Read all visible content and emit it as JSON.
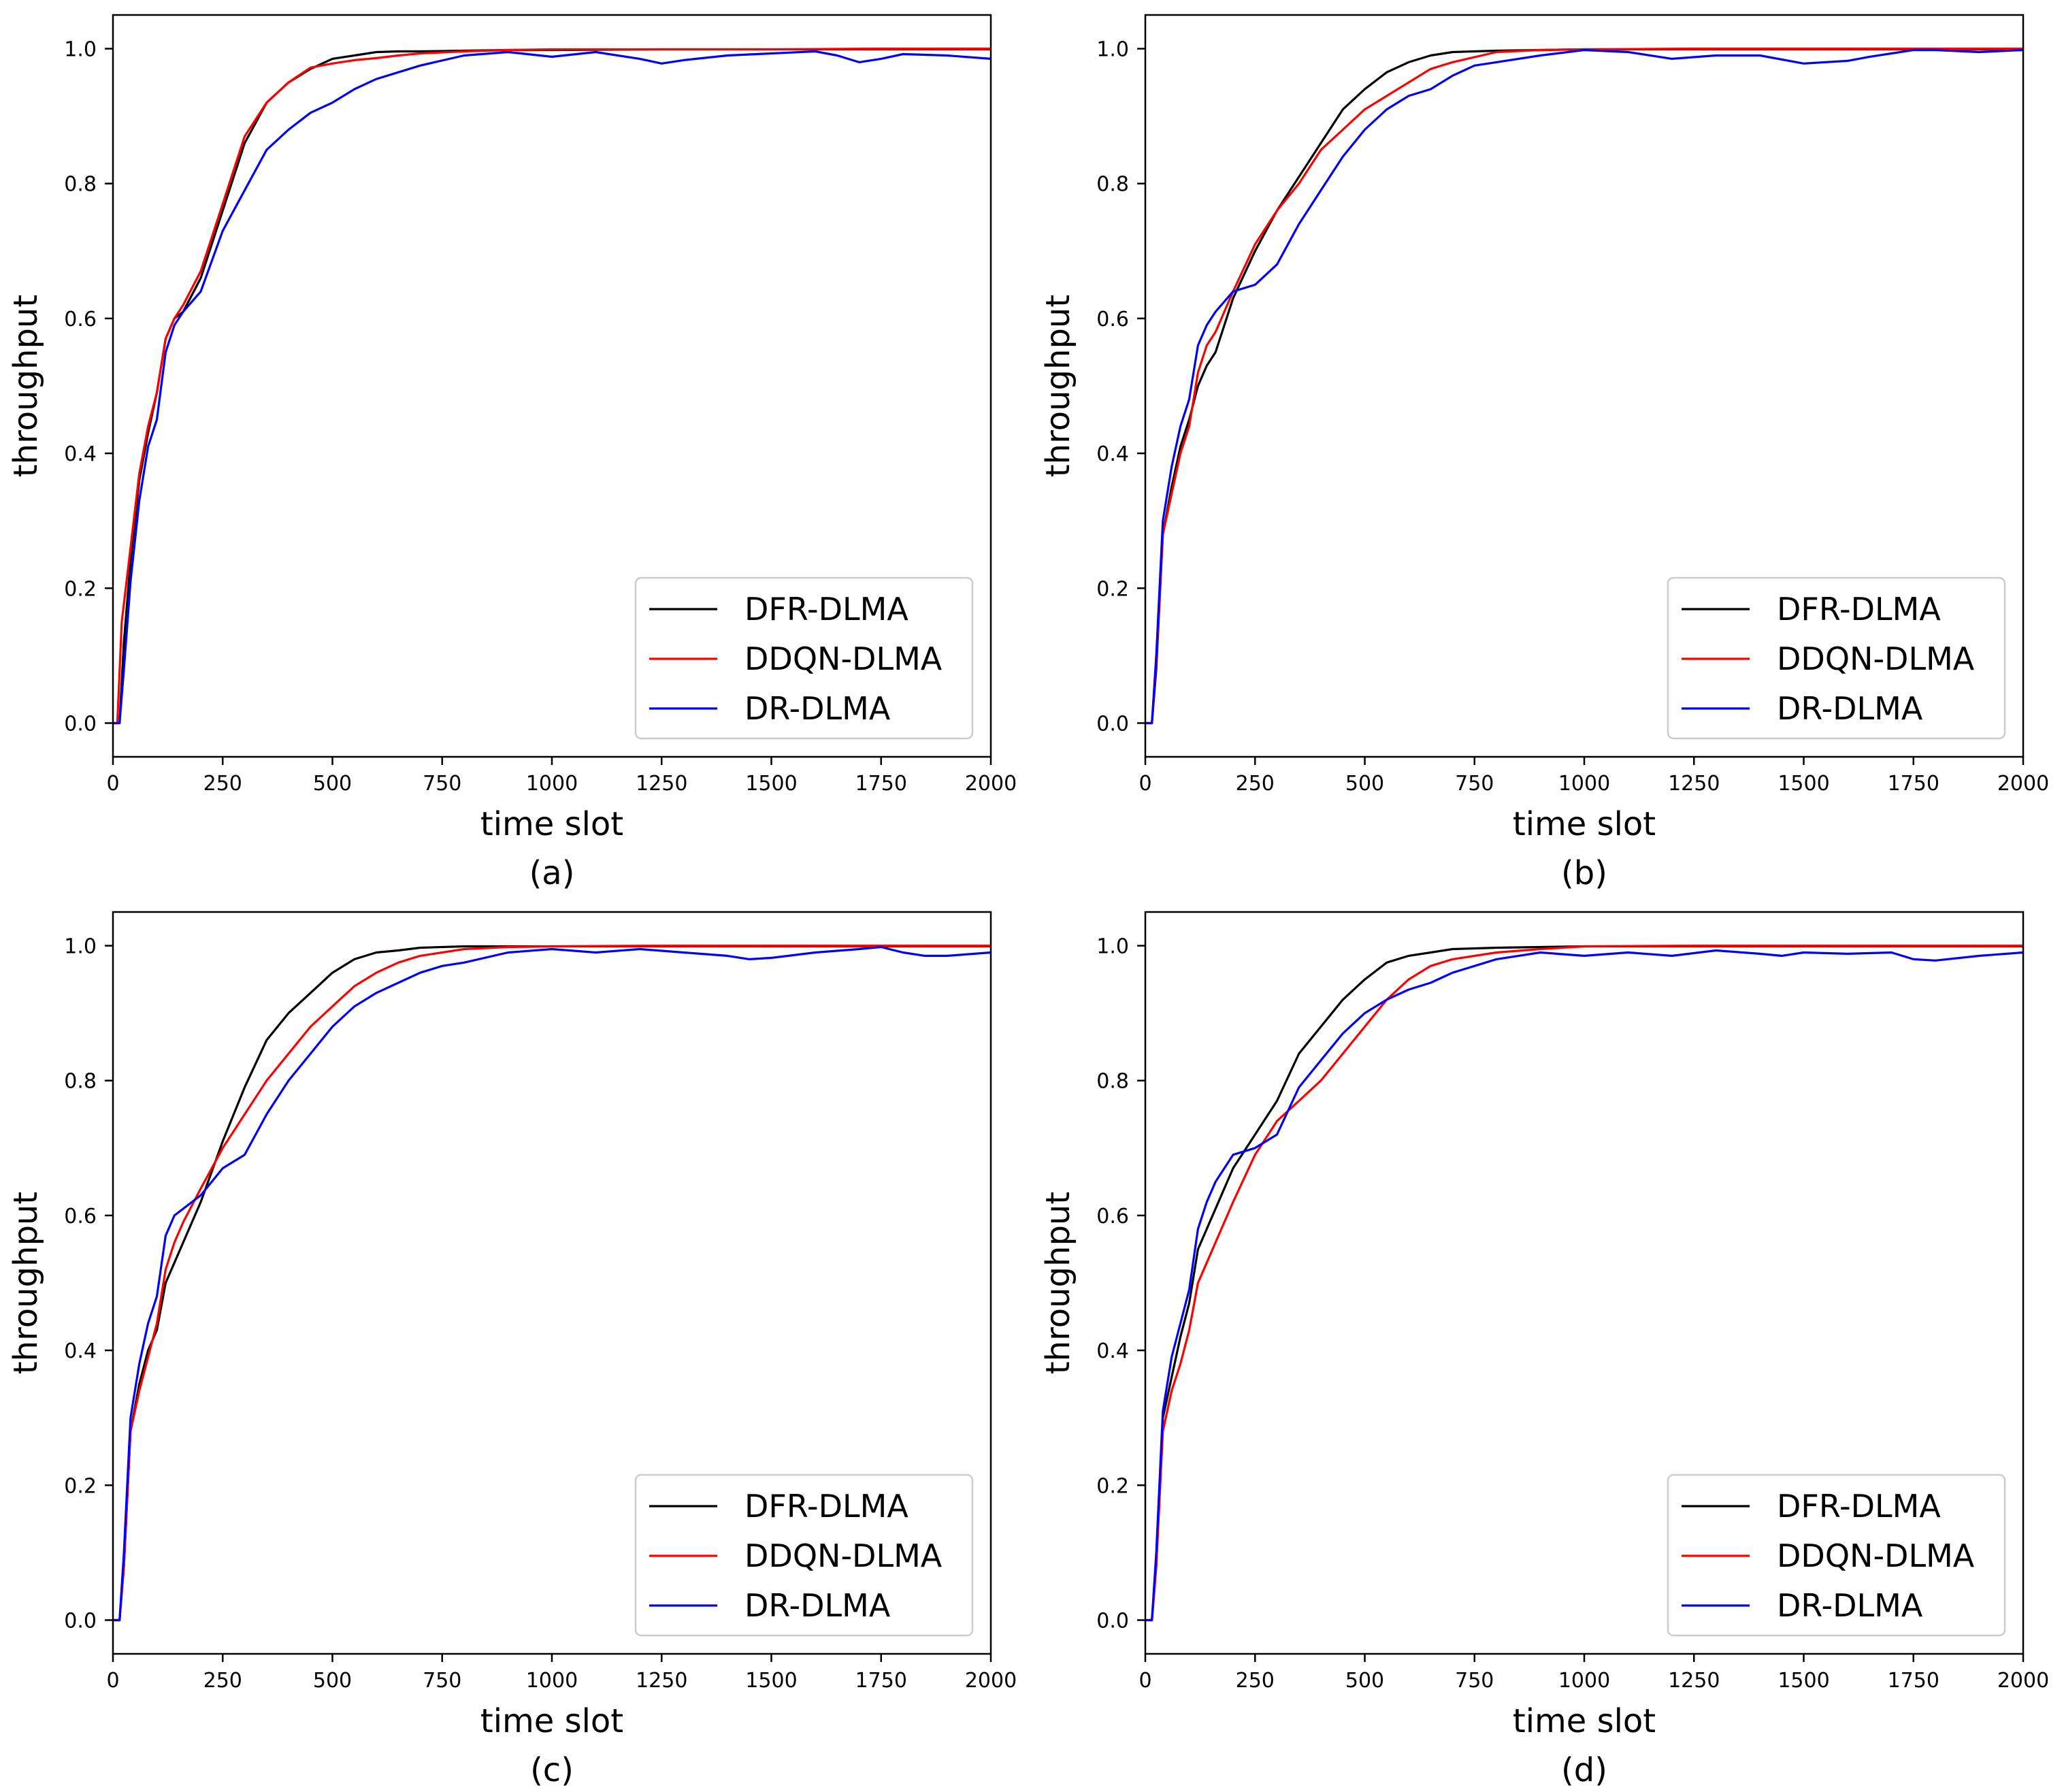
{
  "figure": {
    "colors": {
      "DFR-DLMA": "#000000",
      "DDQN-DLMA": "#ff0000",
      "DR-DLMA": "#0000ff"
    }
  },
  "chart_data": [
    {
      "type": "line",
      "panel": "(a)",
      "xlabel": "time slot",
      "ylabel": "throughput",
      "xlim": [
        0,
        2000
      ],
      "ylim": [
        -0.05,
        1.05
      ],
      "xticks": [
        0,
        250,
        500,
        750,
        1000,
        1250,
        1500,
        1750,
        2000
      ],
      "yticks": [
        0.0,
        0.2,
        0.4,
        0.6,
        0.8,
        1.0
      ],
      "legend_position": "lower-right",
      "series": [
        {
          "name": "DFR-DLMA",
          "color": "#000000",
          "x": [
            0,
            15,
            25,
            40,
            60,
            80,
            100,
            120,
            140,
            160,
            200,
            250,
            300,
            350,
            400,
            450,
            500,
            550,
            600,
            650,
            700,
            800,
            900,
            1000,
            1250,
            1500,
            1750,
            2000
          ],
          "y": [
            0,
            0,
            0.12,
            0.24,
            0.36,
            0.43,
            0.49,
            0.57,
            0.6,
            0.61,
            0.66,
            0.76,
            0.86,
            0.92,
            0.95,
            0.97,
            0.985,
            0.99,
            0.995,
            0.996,
            0.996,
            0.997,
            0.998,
            0.998,
            0.999,
            0.999,
            0.999,
            0.999
          ]
        },
        {
          "name": "DDQN-DLMA",
          "color": "#ff0000",
          "x": [
            0,
            10,
            20,
            40,
            60,
            80,
            100,
            120,
            140,
            160,
            200,
            250,
            300,
            350,
            400,
            450,
            500,
            550,
            600,
            650,
            700,
            800,
            900,
            1000,
            1250,
            1500,
            1750,
            2000
          ],
          "y": [
            0,
            0,
            0.15,
            0.26,
            0.37,
            0.44,
            0.49,
            0.57,
            0.6,
            0.62,
            0.67,
            0.77,
            0.87,
            0.92,
            0.95,
            0.972,
            0.978,
            0.983,
            0.986,
            0.99,
            0.993,
            0.996,
            0.998,
            0.999,
            0.999,
            0.999,
            1.0,
            1.0
          ]
        },
        {
          "name": "DR-DLMA",
          "color": "#0000ff",
          "x": [
            0,
            15,
            25,
            40,
            60,
            80,
            100,
            120,
            140,
            160,
            200,
            250,
            300,
            350,
            400,
            450,
            500,
            550,
            600,
            650,
            700,
            800,
            900,
            1000,
            1100,
            1200,
            1250,
            1300,
            1400,
            1500,
            1600,
            1650,
            1700,
            1750,
            1800,
            1900,
            2000
          ],
          "y": [
            0,
            0,
            0.08,
            0.21,
            0.33,
            0.41,
            0.45,
            0.55,
            0.59,
            0.61,
            0.64,
            0.73,
            0.79,
            0.85,
            0.88,
            0.905,
            0.92,
            0.94,
            0.955,
            0.965,
            0.975,
            0.99,
            0.995,
            0.988,
            0.995,
            0.985,
            0.978,
            0.983,
            0.99,
            0.993,
            0.996,
            0.99,
            0.98,
            0.985,
            0.992,
            0.99,
            0.985
          ]
        }
      ]
    },
    {
      "type": "line",
      "panel": "(b)",
      "xlabel": "time slot",
      "ylabel": "throughput",
      "xlim": [
        0,
        2000
      ],
      "ylim": [
        -0.05,
        1.05
      ],
      "xticks": [
        0,
        250,
        500,
        750,
        1000,
        1250,
        1500,
        1750,
        2000
      ],
      "yticks": [
        0.0,
        0.2,
        0.4,
        0.6,
        0.8,
        1.0
      ],
      "legend_position": "lower-right",
      "series": [
        {
          "name": "DFR-DLMA",
          "color": "#000000",
          "x": [
            0,
            15,
            25,
            40,
            60,
            80,
            100,
            120,
            140,
            160,
            200,
            250,
            300,
            350,
            400,
            450,
            500,
            550,
            600,
            650,
            700,
            800,
            900,
            1000,
            1250,
            1500,
            1750,
            2000
          ],
          "y": [
            0,
            0,
            0.08,
            0.28,
            0.35,
            0.41,
            0.45,
            0.5,
            0.53,
            0.55,
            0.63,
            0.7,
            0.76,
            0.81,
            0.86,
            0.91,
            0.94,
            0.965,
            0.98,
            0.99,
            0.995,
            0.997,
            0.998,
            0.999,
            0.999,
            0.999,
            0.999,
            0.999
          ]
        },
        {
          "name": "DDQN-DLMA",
          "color": "#ff0000",
          "x": [
            0,
            15,
            25,
            40,
            60,
            80,
            100,
            120,
            140,
            160,
            200,
            250,
            300,
            350,
            400,
            450,
            500,
            550,
            600,
            650,
            700,
            800,
            900,
            1000,
            1250,
            1500,
            1750,
            2000
          ],
          "y": [
            0,
            0,
            0.09,
            0.28,
            0.34,
            0.4,
            0.44,
            0.52,
            0.56,
            0.58,
            0.64,
            0.71,
            0.76,
            0.8,
            0.85,
            0.88,
            0.91,
            0.93,
            0.95,
            0.97,
            0.98,
            0.995,
            0.998,
            0.999,
            1.0,
            1.0,
            1.0,
            1.0
          ]
        },
        {
          "name": "DR-DLMA",
          "color": "#0000ff",
          "x": [
            0,
            15,
            25,
            40,
            60,
            80,
            100,
            120,
            140,
            160,
            200,
            250,
            300,
            350,
            400,
            450,
            500,
            550,
            600,
            650,
            700,
            750,
            800,
            900,
            1000,
            1100,
            1200,
            1300,
            1400,
            1500,
            1600,
            1650,
            1700,
            1750,
            1800,
            1900,
            2000
          ],
          "y": [
            0,
            0,
            0.1,
            0.3,
            0.38,
            0.44,
            0.48,
            0.56,
            0.59,
            0.61,
            0.64,
            0.65,
            0.68,
            0.74,
            0.79,
            0.84,
            0.88,
            0.91,
            0.93,
            0.94,
            0.96,
            0.975,
            0.98,
            0.99,
            0.998,
            0.995,
            0.985,
            0.99,
            0.99,
            0.978,
            0.982,
            0.988,
            0.993,
            0.998,
            0.998,
            0.995,
            0.998
          ]
        }
      ]
    },
    {
      "type": "line",
      "panel": "(c)",
      "xlabel": "time slot",
      "ylabel": "throughput",
      "xlim": [
        0,
        2000
      ],
      "ylim": [
        -0.05,
        1.05
      ],
      "xticks": [
        0,
        250,
        500,
        750,
        1000,
        1250,
        1500,
        1750,
        2000
      ],
      "yticks": [
        0.0,
        0.2,
        0.4,
        0.6,
        0.8,
        1.0
      ],
      "legend_position": "lower-right",
      "series": [
        {
          "name": "DFR-DLMA",
          "color": "#000000",
          "x": [
            0,
            15,
            25,
            40,
            60,
            80,
            100,
            120,
            140,
            160,
            200,
            250,
            300,
            350,
            400,
            450,
            500,
            550,
            600,
            650,
            700,
            800,
            900,
            1000,
            1250,
            1500,
            1750,
            2000
          ],
          "y": [
            0,
            0,
            0.08,
            0.28,
            0.35,
            0.4,
            0.43,
            0.5,
            0.53,
            0.56,
            0.62,
            0.71,
            0.79,
            0.86,
            0.9,
            0.93,
            0.96,
            0.98,
            0.99,
            0.993,
            0.997,
            0.999,
            0.999,
            0.999,
            0.999,
            0.999,
            0.999,
            0.999
          ]
        },
        {
          "name": "DDQN-DLMA",
          "color": "#ff0000",
          "x": [
            0,
            15,
            25,
            40,
            60,
            80,
            100,
            120,
            140,
            160,
            200,
            250,
            300,
            350,
            400,
            450,
            500,
            550,
            600,
            650,
            700,
            800,
            900,
            1000,
            1250,
            1500,
            1750,
            2000
          ],
          "y": [
            0,
            0,
            0.08,
            0.28,
            0.34,
            0.39,
            0.44,
            0.52,
            0.56,
            0.59,
            0.64,
            0.7,
            0.75,
            0.8,
            0.84,
            0.88,
            0.91,
            0.94,
            0.96,
            0.975,
            0.985,
            0.995,
            0.998,
            0.999,
            1.0,
            1.0,
            1.0,
            1.0
          ]
        },
        {
          "name": "DR-DLMA",
          "color": "#0000ff",
          "x": [
            0,
            15,
            25,
            40,
            60,
            80,
            100,
            120,
            140,
            160,
            200,
            250,
            300,
            350,
            400,
            450,
            500,
            550,
            600,
            650,
            700,
            750,
            800,
            900,
            1000,
            1100,
            1200,
            1300,
            1400,
            1450,
            1500,
            1600,
            1700,
            1750,
            1800,
            1850,
            1900,
            2000
          ],
          "y": [
            0,
            0,
            0.1,
            0.3,
            0.38,
            0.44,
            0.48,
            0.57,
            0.6,
            0.61,
            0.63,
            0.67,
            0.69,
            0.75,
            0.8,
            0.84,
            0.88,
            0.91,
            0.93,
            0.945,
            0.96,
            0.97,
            0.975,
            0.99,
            0.995,
            0.99,
            0.995,
            0.99,
            0.985,
            0.98,
            0.982,
            0.99,
            0.995,
            0.998,
            0.99,
            0.985,
            0.985,
            0.99
          ]
        }
      ]
    },
    {
      "type": "line",
      "panel": "(d)",
      "xlabel": "time slot",
      "ylabel": "throughput",
      "xlim": [
        0,
        2000
      ],
      "ylim": [
        -0.05,
        1.05
      ],
      "xticks": [
        0,
        250,
        500,
        750,
        1000,
        1250,
        1500,
        1750,
        2000
      ],
      "yticks": [
        0.0,
        0.2,
        0.4,
        0.6,
        0.8,
        1.0
      ],
      "legend_position": "lower-right",
      "series": [
        {
          "name": "DFR-DLMA",
          "color": "#000000",
          "x": [
            0,
            15,
            25,
            40,
            60,
            80,
            100,
            120,
            140,
            160,
            200,
            250,
            300,
            350,
            400,
            450,
            500,
            550,
            600,
            650,
            700,
            800,
            900,
            1000,
            1250,
            1500,
            1750,
            2000
          ],
          "y": [
            0,
            0,
            0.08,
            0.3,
            0.36,
            0.42,
            0.47,
            0.55,
            0.58,
            0.61,
            0.67,
            0.72,
            0.77,
            0.84,
            0.88,
            0.92,
            0.95,
            0.975,
            0.985,
            0.99,
            0.995,
            0.997,
            0.998,
            0.999,
            0.999,
            0.999,
            0.999,
            0.999
          ]
        },
        {
          "name": "DDQN-DLMA",
          "color": "#ff0000",
          "x": [
            0,
            15,
            25,
            40,
            60,
            80,
            100,
            120,
            140,
            160,
            200,
            250,
            300,
            350,
            400,
            450,
            500,
            550,
            600,
            650,
            700,
            800,
            900,
            1000,
            1250,
            1500,
            1750,
            2000
          ],
          "y": [
            0,
            0,
            0.08,
            0.28,
            0.34,
            0.38,
            0.43,
            0.5,
            0.53,
            0.56,
            0.62,
            0.69,
            0.74,
            0.77,
            0.8,
            0.84,
            0.88,
            0.92,
            0.95,
            0.97,
            0.98,
            0.99,
            0.995,
            0.999,
            1.0,
            1.0,
            1.0,
            1.0
          ]
        },
        {
          "name": "DR-DLMA",
          "color": "#0000ff",
          "x": [
            0,
            15,
            25,
            40,
            60,
            80,
            100,
            120,
            140,
            160,
            200,
            250,
            300,
            350,
            400,
            450,
            500,
            550,
            600,
            650,
            700,
            750,
            800,
            900,
            1000,
            1100,
            1200,
            1300,
            1400,
            1450,
            1500,
            1600,
            1700,
            1750,
            1800,
            1900,
            2000
          ],
          "y": [
            0,
            0,
            0.1,
            0.31,
            0.39,
            0.44,
            0.49,
            0.58,
            0.62,
            0.65,
            0.69,
            0.7,
            0.72,
            0.79,
            0.83,
            0.87,
            0.9,
            0.92,
            0.935,
            0.945,
            0.96,
            0.97,
            0.98,
            0.99,
            0.985,
            0.99,
            0.985,
            0.993,
            0.988,
            0.985,
            0.99,
            0.988,
            0.99,
            0.98,
            0.978,
            0.985,
            0.99
          ]
        }
      ]
    }
  ]
}
